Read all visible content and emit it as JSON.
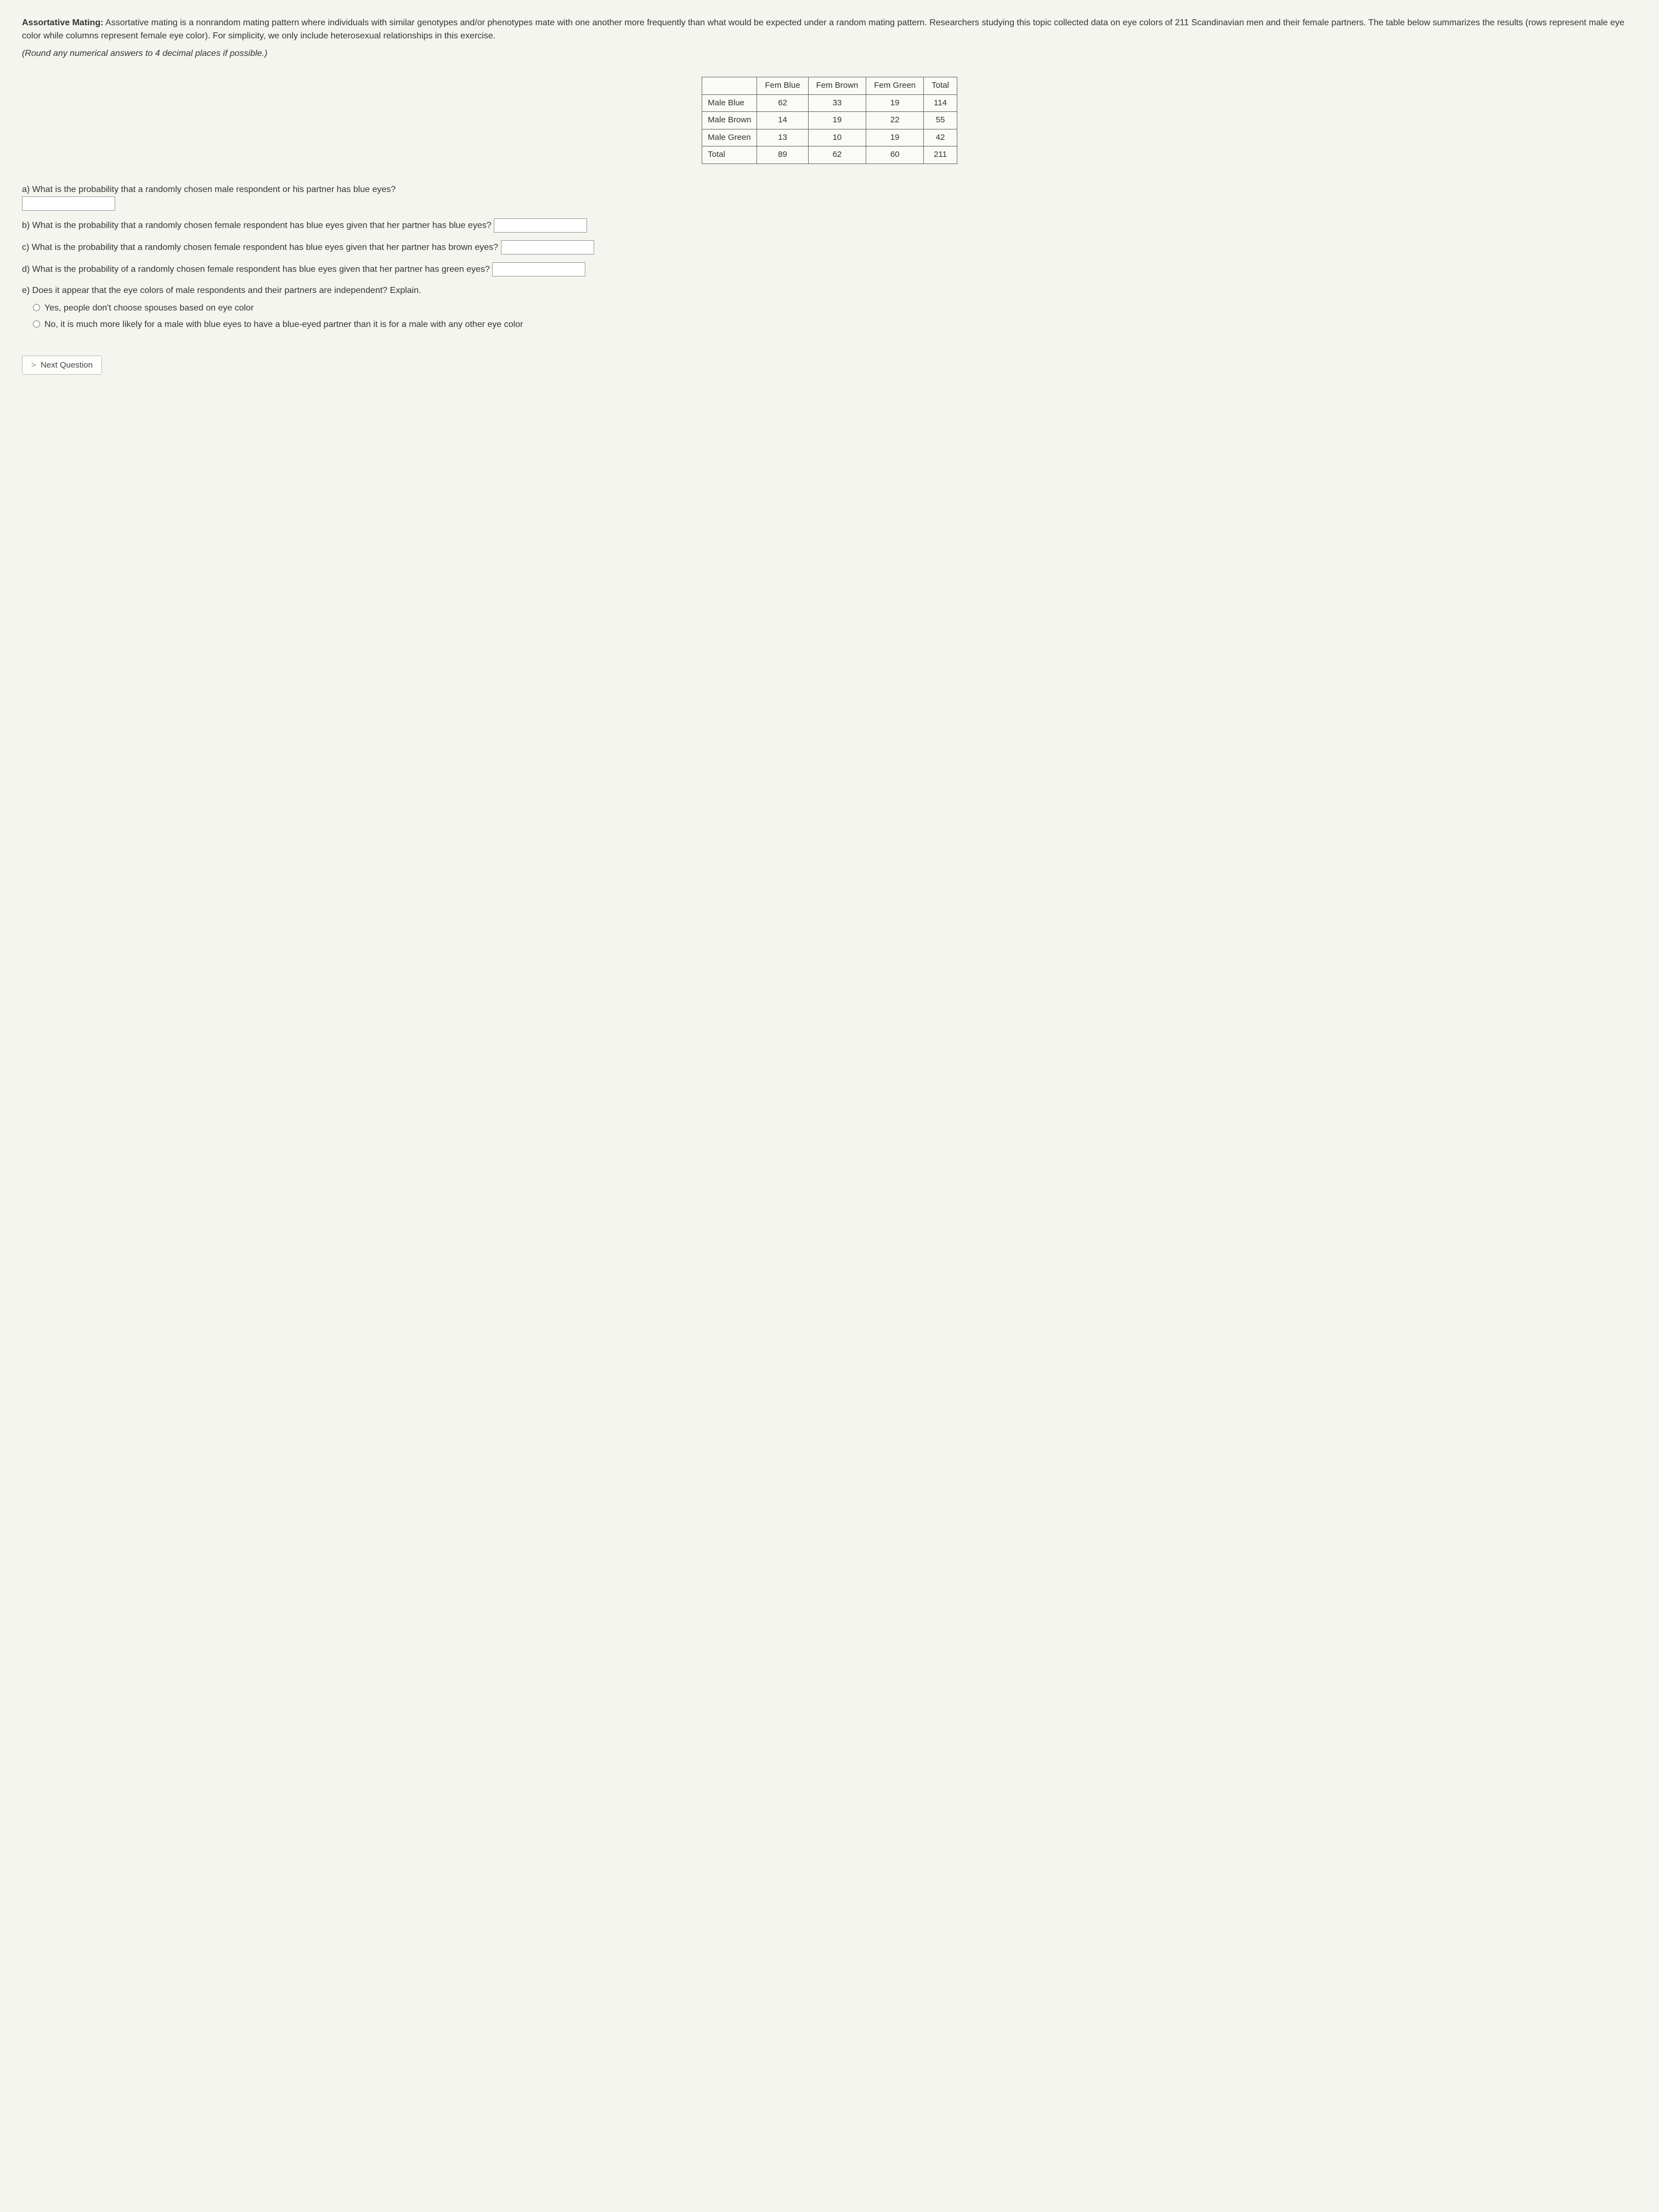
{
  "header": {
    "title": "Assortative Mating:",
    "body": "Assortative mating is a nonrandom mating pattern where individuals with similar genotypes and/or phenotypes mate with one another more frequently than what would be expected under a random mating pattern. Researchers studying this topic collected data on eye colors of 211 Scandinavian men and their female partners. The table below summarizes the results (rows represent male eye color while columns represent female eye color). For simplicity, we only include heterosexual relationships in this exercise.",
    "instruction": "(Round any numerical answers to 4 decimal places if possible.)"
  },
  "table": {
    "type": "table",
    "columns": [
      "",
      "Fem Blue",
      "Fem Brown",
      "Fem Green",
      "Total"
    ],
    "rows": [
      [
        "Male Blue",
        "62",
        "33",
        "19",
        "114"
      ],
      [
        "Male Brown",
        "14",
        "19",
        "22",
        "55"
      ],
      [
        "Male Green",
        "13",
        "10",
        "19",
        "42"
      ],
      [
        "Total",
        "89",
        "62",
        "60",
        "211"
      ]
    ],
    "border_color": "#666666",
    "cell_background": "#fafaf7",
    "font_size": 15
  },
  "questions": {
    "a": "a) What is the probability that a randomly chosen male respondent or his partner has blue eyes?",
    "b_prefix": "b) What is the probability that a randomly chosen female respondent has blue eyes given that her partner has blue eyes?",
    "c_prefix": "c) What is the probability that a randomly chosen female respondent has blue eyes given that her partner has brown eyes?",
    "d_prefix": "d) What is the probability of a randomly chosen female respondent has blue eyes given that her partner has green eyes?",
    "e": "e) Does it appear that the eye colors of male respondents and their partners are independent? Explain.",
    "option1": "Yes, people don't choose spouses based on eye color",
    "option2": "No, it is much more likely for a male with blue eyes to have a blue-eyed partner than it is for a male with any other eye color"
  },
  "nav": {
    "next_label": "Next Question",
    "chevron": ">"
  },
  "colors": {
    "page_background": "#f5f5f0",
    "text": "#333333",
    "input_border": "#999999",
    "button_border": "#bbbbbb",
    "button_bg": "#fdfdfb"
  }
}
